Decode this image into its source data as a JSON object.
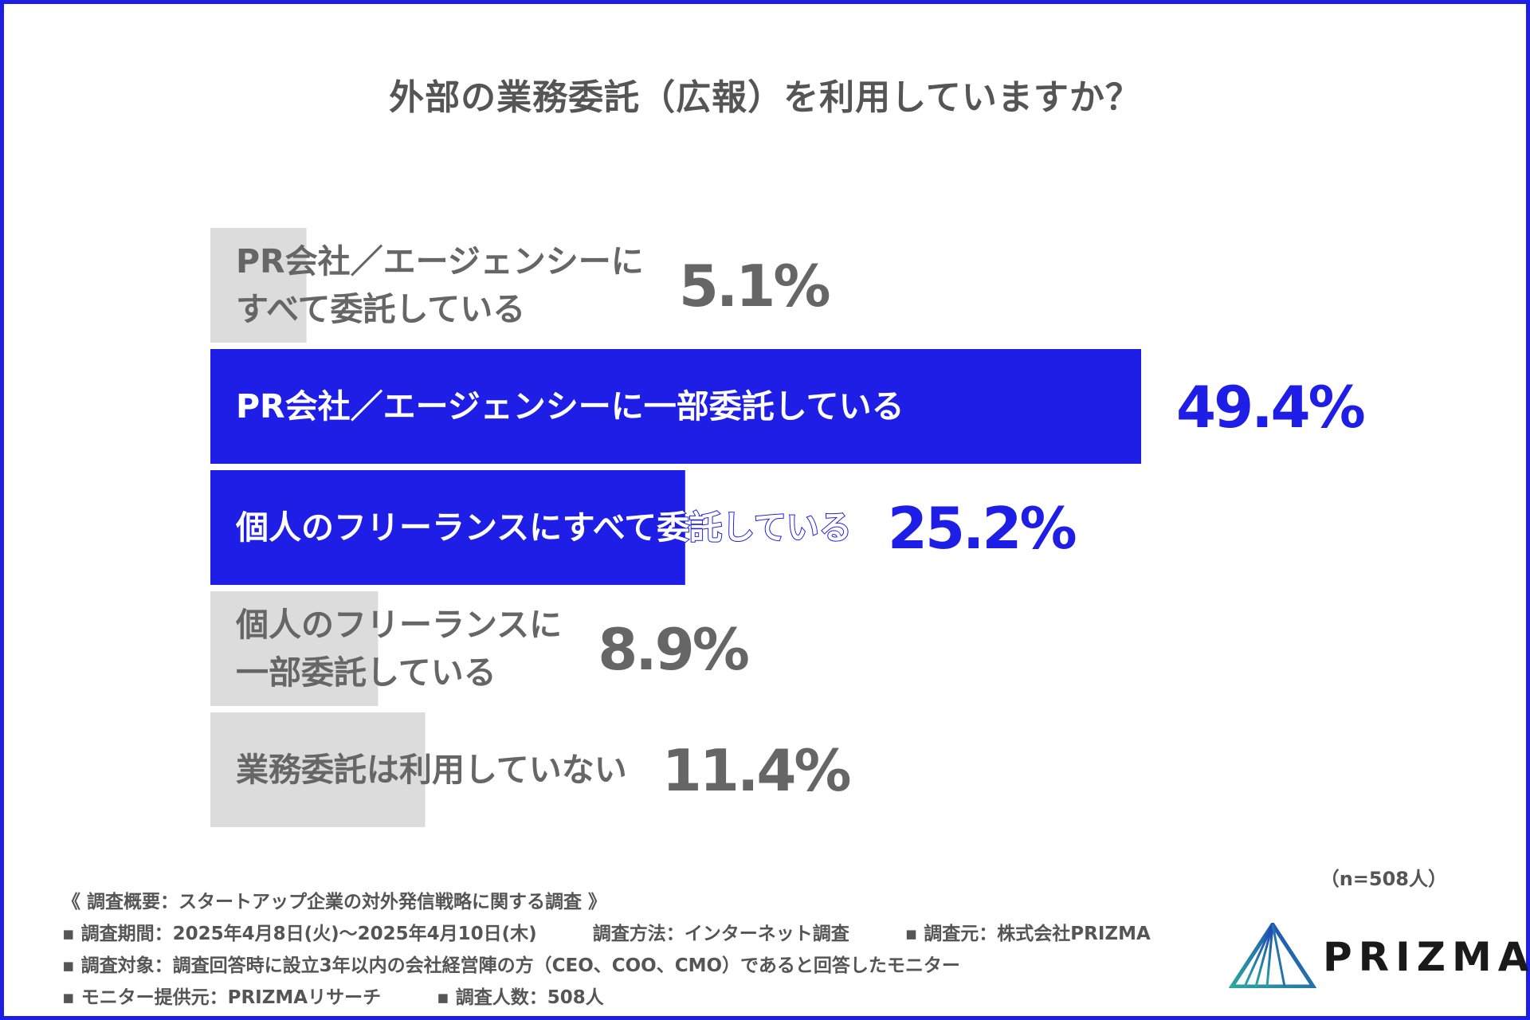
{
  "chart_data": {
    "type": "bar",
    "orientation": "horizontal",
    "title": "外部の業務委託（広報）を利用していますか？",
    "unit": "%",
    "categories": [
      "PR会社／エージェンシーにすべて委託している",
      "PR会社／エージェンシーに一部委託している",
      "個人のフリーランスにすべて委託している",
      "個人のフリーランスに一部委託している",
      "業務委託は利用していない"
    ],
    "label_lines": [
      [
        "PR会社／エージェンシーに",
        "すべて委託している"
      ],
      [
        "PR会社／エージェンシーに一部委託している"
      ],
      [
        "個人のフリーランスにすべて委託している"
      ],
      [
        "個人のフリーランスに",
        "一部委託している"
      ],
      [
        "業務委託は利用していない"
      ]
    ],
    "values": [
      5.1,
      49.4,
      25.2,
      8.9,
      11.4
    ],
    "value_labels": [
      "5.1%",
      "49.4%",
      "25.2%",
      "8.9%",
      "11.4%"
    ],
    "highlighted": [
      false,
      true,
      true,
      false,
      false
    ],
    "xlim": [
      0,
      50
    ],
    "grid": false,
    "legend": "none"
  },
  "colors": {
    "highlight_bar": "#1e1ee6",
    "normal_bar": "#dcdcdc",
    "highlight_text": "#1e1ee6",
    "normal_text": "#666666",
    "frame": "#1e1ee6"
  },
  "sample_size": "（n=508人）",
  "survey": {
    "heading": "《 調査概要：スタートアップ企業の対外発信戦略に関する調査 》",
    "period": "▪ 調査期間：2025年4月8日(火)〜2025年4月10日(木)",
    "method": "調査方法：インターネット調査",
    "source": "▪ 調査元：株式会社PRIZMA",
    "target": "▪ 調査対象：調査回答時に設立3年以内の会社経営陣の方（CEO、COO、CMO）であると回答したモニター",
    "provider": "▪ モニター提供元：PRIZMAリサーチ",
    "respondents": "▪ 調査人数：508人"
  },
  "logo": {
    "text": "PRIZMA",
    "icon": "prism-triangle-icon"
  }
}
